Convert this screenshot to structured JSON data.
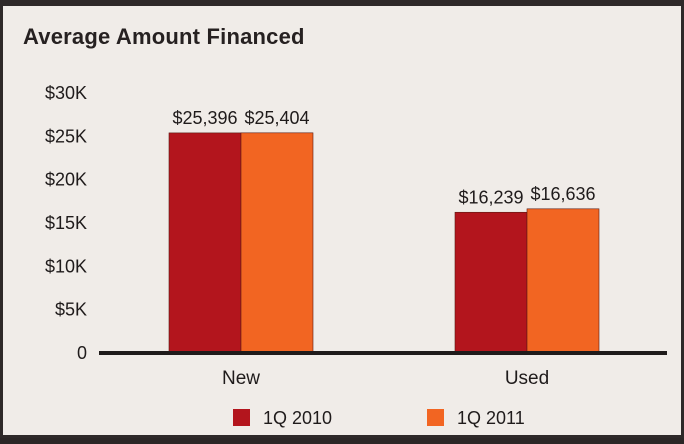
{
  "chart_data": {
    "type": "bar",
    "title": "Average Amount Financed",
    "xlabel": "",
    "ylabel": "",
    "categories": [
      "New",
      "Used"
    ],
    "series": [
      {
        "name": "1Q 2010",
        "color": "#b3151d",
        "values": [
          25396,
          16239
        ],
        "labels": [
          "$25,396",
          "$16,239"
        ]
      },
      {
        "name": "1Q 2011",
        "color": "#f26522",
        "values": [
          25404,
          16636
        ],
        "labels": [
          "$25,404",
          "$16,636"
        ]
      }
    ],
    "ylim": [
      0,
      30000
    ],
    "y_ticks": [
      0,
      5000,
      10000,
      15000,
      20000,
      25000,
      30000
    ],
    "y_tick_labels": [
      "0",
      "$5K",
      "$10K",
      "$15K",
      "$20K",
      "$25K",
      "$30K"
    ],
    "grid": false,
    "legend_position": "bottom-center"
  },
  "colors": {
    "background": "#f0ece8",
    "border": "#2e2929",
    "axis": "#1f1b1b"
  }
}
